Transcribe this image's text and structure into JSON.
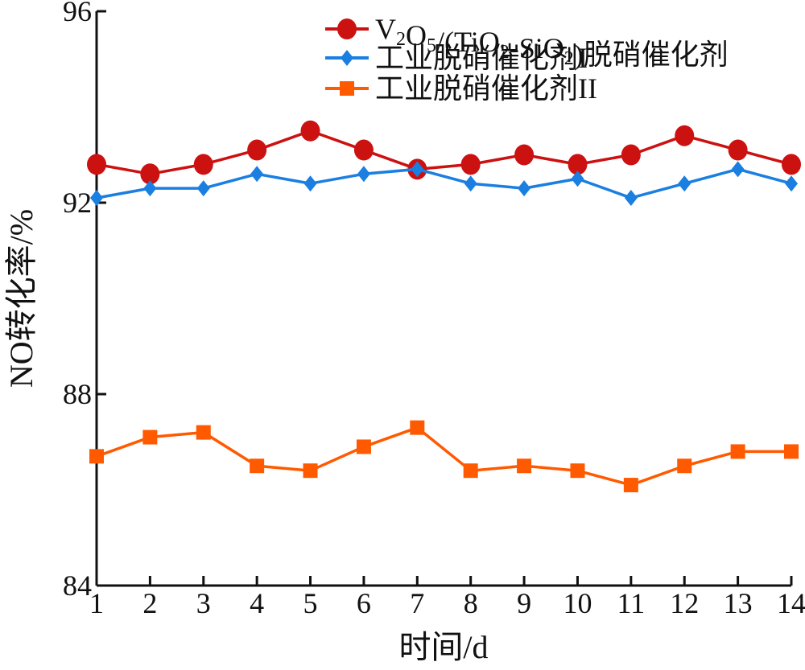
{
  "chart_data": {
    "type": "line",
    "title": "",
    "xlabel": "时间/d",
    "ylabel": "NO转化率/%",
    "x": [
      1,
      2,
      3,
      4,
      5,
      6,
      7,
      8,
      9,
      10,
      11,
      12,
      13,
      14
    ],
    "xlim": [
      1,
      14
    ],
    "ylim": [
      84,
      96
    ],
    "yticks": [
      84,
      88,
      92,
      96
    ],
    "grid": false,
    "legend_position": "top-right",
    "series": [
      {
        "name": "V2O5/(TiO2-SiO2)脱硝催化剂",
        "color": "#cc1111",
        "marker": "circle",
        "values": [
          92.8,
          92.6,
          92.8,
          93.1,
          93.5,
          93.1,
          92.7,
          92.8,
          93.0,
          92.8,
          93.0,
          93.4,
          93.1,
          92.8
        ]
      },
      {
        "name": "工业脱硝催化剂I",
        "color": "#1a7fe0",
        "marker": "diamond",
        "values": [
          92.1,
          92.3,
          92.3,
          92.6,
          92.4,
          92.6,
          92.7,
          92.4,
          92.3,
          92.5,
          92.1,
          92.4,
          92.7,
          92.4
        ]
      },
      {
        "name": "工业脱硝催化剂II",
        "color": "#ff5a00",
        "marker": "square",
        "values": [
          86.7,
          87.1,
          87.2,
          86.5,
          86.4,
          86.9,
          87.3,
          86.4,
          86.5,
          86.4,
          86.1,
          86.5,
          86.8,
          86.8
        ]
      }
    ]
  }
}
